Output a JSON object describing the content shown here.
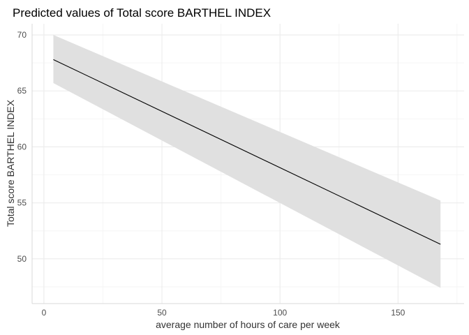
{
  "chart_data": {
    "type": "line",
    "title": "Predicted values of Total score BARTHEL INDEX",
    "xlabel": "average number of hours of care per week",
    "ylabel": "Total score BARTHEL INDEX",
    "xlim": [
      -5,
      178
    ],
    "ylim": [
      46,
      71
    ],
    "x_ticks": [
      0,
      50,
      100,
      150
    ],
    "y_ticks": [
      50,
      55,
      60,
      65,
      70
    ],
    "x_tick_labels": [
      "0",
      "50",
      "100",
      "150"
    ],
    "y_tick_labels": [
      "50",
      "55",
      "60",
      "65",
      "70"
    ],
    "grid": true,
    "legend": "none",
    "series": [
      {
        "x": [
          4,
          168
        ],
        "y": [
          67.8,
          51.3
        ],
        "lower": [
          65.7,
          47.4
        ],
        "upper": [
          70.0,
          55.2
        ]
      }
    ],
    "colors": {
      "line": "#000000",
      "ribbon": "#e0e0e0",
      "grid_major": "#ebebeb",
      "grid_minor": "#f5f5f5",
      "panel_border": "#d9d9d9"
    }
  }
}
